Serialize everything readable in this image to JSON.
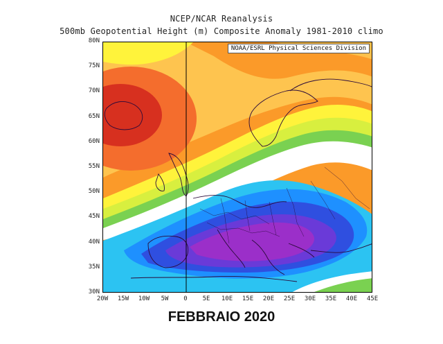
{
  "title": {
    "line1": "NCEP/NCAR Reanalysis",
    "line2": "500mb Geopotential Height (m) Composite Anomaly 1981-2010 climo"
  },
  "credit": "NOAA/ESRL Physical Sciences Division",
  "axes": {
    "lat_labels": [
      "80N",
      "75N",
      "70N",
      "65N",
      "60N",
      "55N",
      "50N",
      "45N",
      "40N",
      "35N",
      "30N"
    ],
    "lon_labels": [
      "20W",
      "15W",
      "10W",
      "5W",
      "0",
      "5E",
      "10E",
      "15E",
      "20E",
      "25E",
      "30E",
      "35E",
      "40E",
      "45E"
    ]
  },
  "map": {
    "region": "Europe / North Atlantic",
    "lon_range": [
      "20W",
      "45E"
    ],
    "lat_range": [
      "30N",
      "80N"
    ],
    "features": [
      "positive anomaly over Iceland/North Atlantic (red)",
      "negative anomaly over central Europe and Mediterranean (purple/blue)"
    ],
    "colors": {
      "red": "#d7301f",
      "orange_red": "#f46d2d",
      "orange": "#fb9a29",
      "light_orange": "#fec44f",
      "yellow": "#fff33b",
      "yellow_green": "#d8ef3f",
      "green": "#7ad151",
      "white": "#ffffff",
      "cyan": "#2cc3f2",
      "light_blue": "#1e90ff",
      "blue": "#2f4fe0",
      "violet": "#6a3ad8",
      "purple": "#9b2fc9",
      "coast": "#2a0a3a"
    }
  },
  "footer": "FEBBRAIO 2020"
}
